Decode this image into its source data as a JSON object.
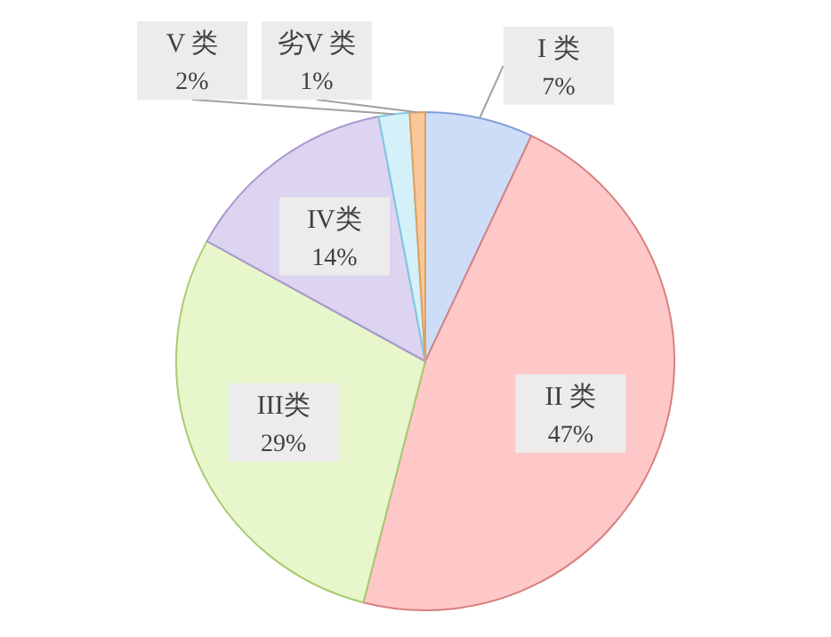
{
  "chart_data": {
    "type": "pie",
    "categories": [
      "I 类",
      "II 类",
      "III类",
      "IV类",
      "V 类",
      "劣V 类"
    ],
    "values": [
      7,
      47,
      29,
      14,
      2,
      1
    ],
    "colors": [
      "#cddcf7",
      "#ffc8c8",
      "#e8f6cc",
      "#dcd4f0",
      "#d4f0f8",
      "#f8c898"
    ],
    "value_labels": [
      "7%",
      "47%",
      "29%",
      "14%",
      "2%",
      "1%"
    ]
  }
}
